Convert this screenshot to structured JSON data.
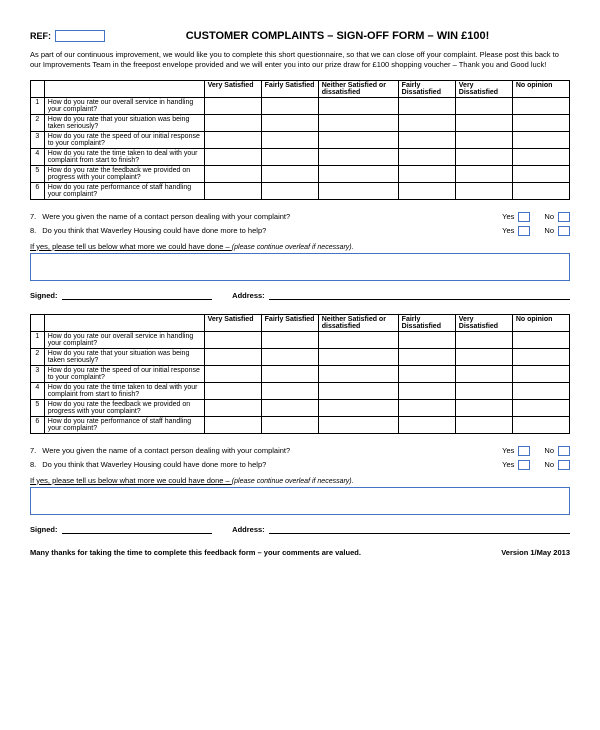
{
  "ref_label": "REF:",
  "title": "CUSTOMER COMPLAINTS – SIGN-OFF FORM – WIN £100!",
  "intro_text": "As part of our continuous improvement, we would like you to complete this short questionnaire, so that we can close off your complaint. Please post this back to our Improvements Team in the freepost envelope provided and we will enter you into our prize draw for £100 shopping voucher – Thank you and Good luck!",
  "rating_table": {
    "columns": [
      "",
      "",
      "Very Satisfied",
      "Fairly Satisfied",
      "Neither Satisfied or dissatisfied",
      "Fairly Dissatisfied",
      "Very Dissatisfied",
      "No opinion"
    ],
    "rows": [
      {
        "num": "1",
        "q": "How do you rate our overall service in handling your complaint?"
      },
      {
        "num": "2",
        "q": "How do you rate that your situation was being taken seriously?"
      },
      {
        "num": "3",
        "q": "How do you rate the speed of our initial response to your complaint?"
      },
      {
        "num": "4",
        "q": "How do you rate the time taken to deal with your complaint from start to finish?"
      },
      {
        "num": "5",
        "q": "How do you rate the feedback we provided on progress with your complaint?"
      },
      {
        "num": "6",
        "q": "How do you rate performance of staff handling your complaint?"
      }
    ]
  },
  "q7": {
    "num": "7.",
    "text": "Were you given the name of a contact person dealing with your complaint?"
  },
  "q8": {
    "num": "8.",
    "text": "Do you think that Waverley Housing could have done more to help?"
  },
  "yes_label": "Yes",
  "no_label": "No",
  "ifyes_text": "If yes, please tell us below what more we could have done – ",
  "ifyes_italic": "(please continue overleaf if necessary).",
  "signed_label": "Signed:",
  "address_label": "Address:",
  "footer_thanks": "Many thanks for taking the time to complete this feedback form – your comments are valued.",
  "footer_version": "Version 1/May 2013"
}
